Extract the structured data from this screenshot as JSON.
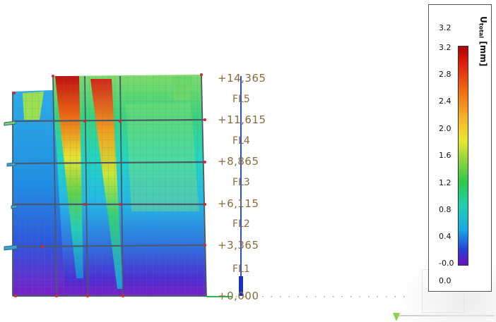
{
  "levels": [
    {
      "elevation": "+14,365"
    },
    {
      "elevation": "+11,615"
    },
    {
      "elevation": "+8,865"
    },
    {
      "elevation": "+6,115"
    },
    {
      "elevation": "+3,365"
    },
    {
      "elevation": "+0,000"
    }
  ],
  "floors": [
    "FL5",
    "FL4",
    "FL3",
    "FL2",
    "FL1"
  ],
  "legend": {
    "title": "U",
    "title_sub": "total",
    "unit": " [mm]",
    "top_value": "3.2",
    "ticks": [
      "3.2",
      "2.8",
      "2.4",
      "2.0",
      "1.6",
      "1.2",
      "0.8",
      "0.4",
      "-0.0"
    ],
    "bottom_value": "0.0",
    "colors": {
      "max": "#b00000",
      "high": "#f06a10",
      "mid_high": "#e8ea30",
      "mid": "#2ec84a",
      "mid_low": "#20d0b0",
      "low": "#1aa6e6",
      "min": "#6a10c0"
    }
  }
}
